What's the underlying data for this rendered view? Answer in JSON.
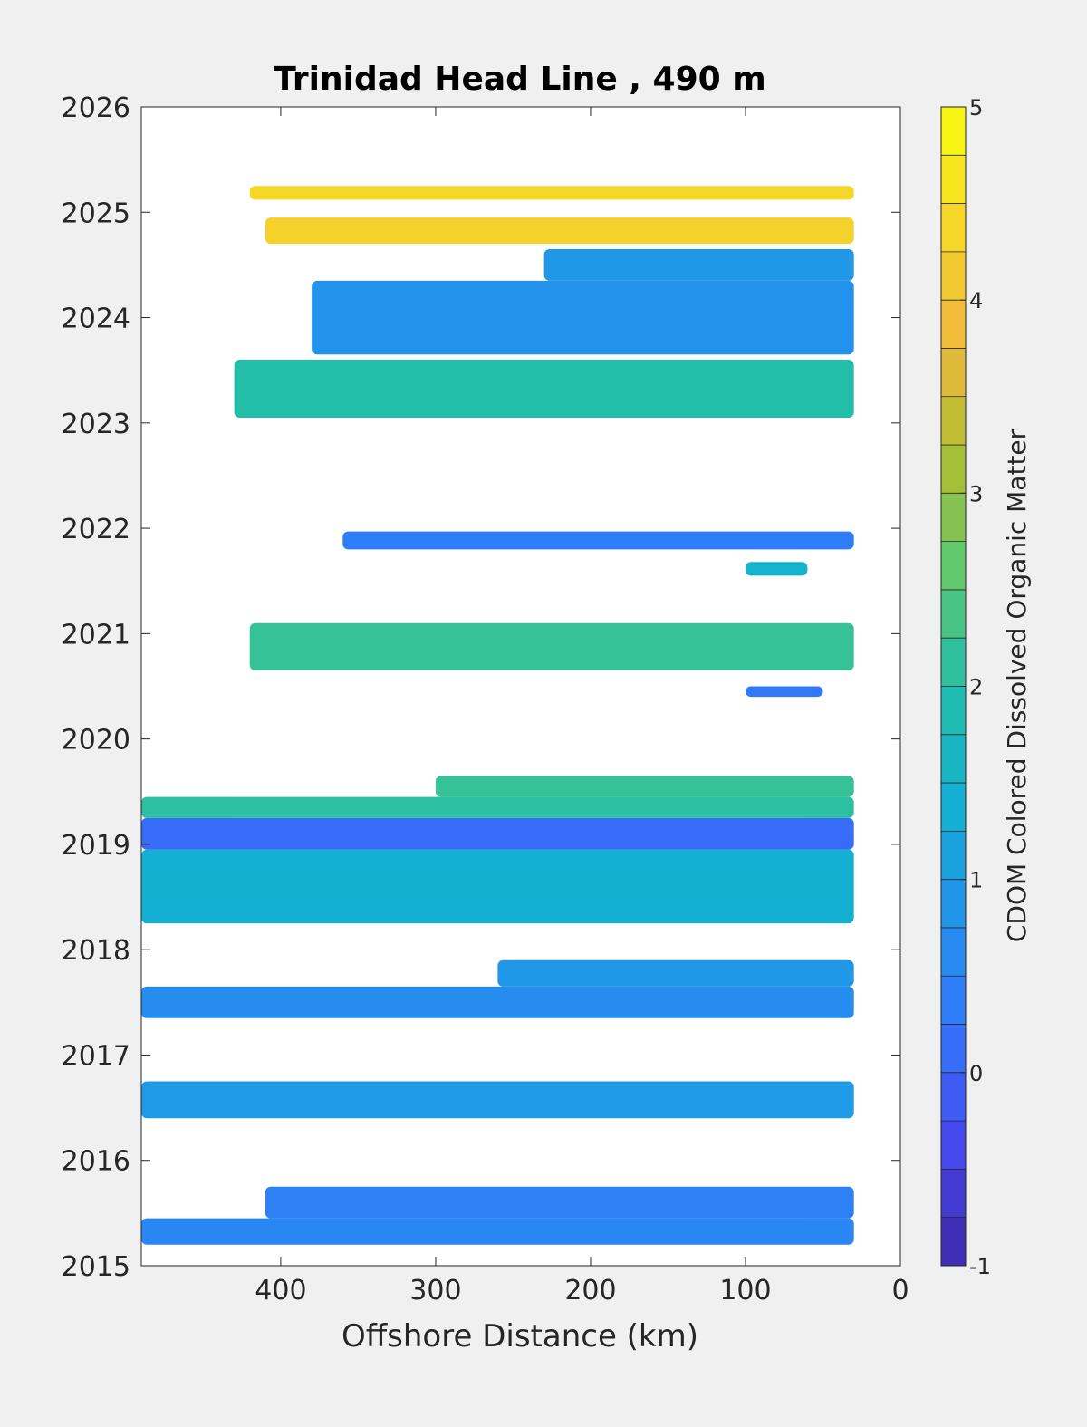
{
  "chart_data": {
    "type": "heatmap",
    "title": "Trinidad Head Line , 490 m",
    "xlabel": "Offshore Distance (km)",
    "ylabel": "",
    "x_reversed": true,
    "xlim": [
      0,
      490
    ],
    "ylim": [
      2015,
      2026
    ],
    "xticks": [
      400,
      300,
      200,
      100,
      0
    ],
    "yticks": [
      2015,
      2016,
      2017,
      2018,
      2019,
      2020,
      2021,
      2022,
      2023,
      2024,
      2025,
      2026
    ],
    "grid": false,
    "colorbar": {
      "label": "CDOM Colored Dissolved Organic Matter",
      "range": [
        -1,
        5
      ],
      "ticks": [
        -1,
        0,
        1,
        2,
        3,
        4,
        5
      ],
      "levels": 24,
      "colormap": "parula"
    },
    "bands": [
      {
        "year_start": 2015.2,
        "year_end": 2015.45,
        "x_start": 490,
        "x_end": 30,
        "value": 0.55
      },
      {
        "year_start": 2015.45,
        "year_end": 2015.75,
        "x_start": 410,
        "x_end": 30,
        "value": 0.45
      },
      {
        "year_start": 2016.4,
        "year_end": 2016.75,
        "x_start": 490,
        "x_end": 30,
        "value": 0.95
      },
      {
        "year_start": 2017.35,
        "year_end": 2017.65,
        "x_start": 490,
        "x_end": 30,
        "value": 0.7
      },
      {
        "year_start": 2017.65,
        "year_end": 2017.9,
        "x_start": 260,
        "x_end": 30,
        "value": 0.9
      },
      {
        "year_start": 2018.25,
        "year_end": 2018.95,
        "x_start": 490,
        "x_end": 30,
        "value": 1.4
      },
      {
        "year_start": 2018.95,
        "year_end": 2019.25,
        "x_start": 490,
        "x_end": 30,
        "value": 0.1
      },
      {
        "year_start": 2019.25,
        "year_end": 2019.45,
        "x_start": 490,
        "x_end": 30,
        "value": 2.1
      },
      {
        "year_start": 2019.45,
        "year_end": 2019.65,
        "x_start": 300,
        "x_end": 30,
        "value": 2.2
      },
      {
        "year_start": 2020.4,
        "year_end": 2020.5,
        "x_start": 100,
        "x_end": 50,
        "value": 0.3
      },
      {
        "year_start": 2020.65,
        "year_end": 2021.1,
        "x_start": 420,
        "x_end": 30,
        "value": 2.2
      },
      {
        "year_start": 2021.55,
        "year_end": 2021.68,
        "x_start": 100,
        "x_end": 60,
        "value": 1.5
      },
      {
        "year_start": 2021.8,
        "year_end": 2021.97,
        "x_start": 360,
        "x_end": 30,
        "value": 0.4
      },
      {
        "year_start": 2023.05,
        "year_end": 2023.6,
        "x_start": 430,
        "x_end": 30,
        "value": 2.0
      },
      {
        "year_start": 2023.65,
        "year_end": 2024.35,
        "x_start": 380,
        "x_end": 30,
        "value": 0.8
      },
      {
        "year_start": 2024.35,
        "year_end": 2024.65,
        "x_start": 230,
        "x_end": 30,
        "value": 0.9
      },
      {
        "year_start": 2024.7,
        "year_end": 2024.95,
        "x_start": 410,
        "x_end": 30,
        "value": 4.3
      },
      {
        "year_start": 2025.12,
        "year_end": 2025.25,
        "x_start": 420,
        "x_end": 30,
        "value": 4.4
      }
    ]
  }
}
